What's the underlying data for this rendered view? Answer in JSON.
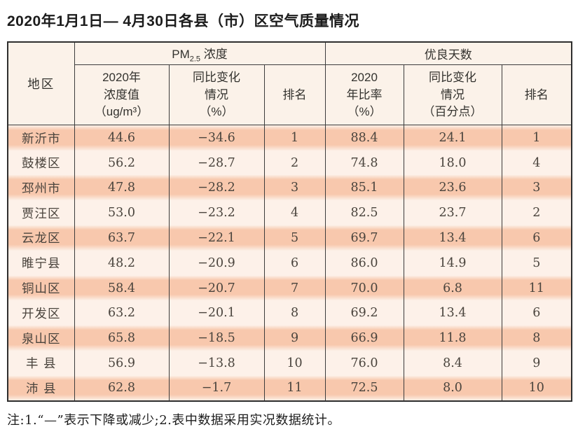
{
  "title": "2020年1月1日— 4月30日各县（市）区空气质量情况",
  "colors": {
    "salmon_row": "#f8c8ad",
    "cream_row": "#fdf1e9",
    "header_bg": "#fbf2e9",
    "border": "#3c3c3c"
  },
  "table": {
    "corner_header": "地区",
    "pm_group": {
      "prefix": "PM",
      "subscript": "2.5",
      "suffix": " 浓度"
    },
    "good_days_group": "优良天数",
    "sub_headers": [
      "2020年\n浓度值\n（ug/m³）",
      "同比变化\n情况\n（%）",
      "排名",
      "2020\n年比率\n（%）",
      "同比变化\n情况\n（百分点）",
      "排名"
    ],
    "rows": [
      [
        "新沂市",
        "44.6",
        "−34.6",
        "1",
        "88.4",
        "24.1",
        "1"
      ],
      [
        "鼓楼区",
        "56.2",
        "−28.7",
        "2",
        "74.8",
        "18.0",
        "4"
      ],
      [
        "邳州市",
        "47.8",
        "−28.2",
        "3",
        "85.1",
        "23.6",
        "3"
      ],
      [
        "贾汪区",
        "53.0",
        "−23.2",
        "4",
        "82.5",
        "23.7",
        "2"
      ],
      [
        "云龙区",
        "63.7",
        "−22.1",
        "5",
        "69.7",
        "13.4",
        "6"
      ],
      [
        "睢宁县",
        "48.2",
        "−20.9",
        "6",
        "86.0",
        "14.9",
        "5"
      ],
      [
        "铜山区",
        "58.4",
        "−20.7",
        "7",
        "70.0",
        "6.8",
        "11"
      ],
      [
        "开发区",
        "63.2",
        "−20.1",
        "8",
        "69.2",
        "13.4",
        "6"
      ],
      [
        "泉山区",
        "65.8",
        "−18.5",
        "9",
        "66.9",
        "11.8",
        "8"
      ],
      [
        "丰 县",
        "56.9",
        "−13.8",
        "10",
        "76.0",
        "8.4",
        "9"
      ],
      [
        "沛 县",
        "62.8",
        "−1.7",
        "11",
        "72.5",
        "8.0",
        "10"
      ]
    ]
  },
  "footnote": "注:1.“—”表示下降或减少;2.表中数据采用实况数据统计。"
}
